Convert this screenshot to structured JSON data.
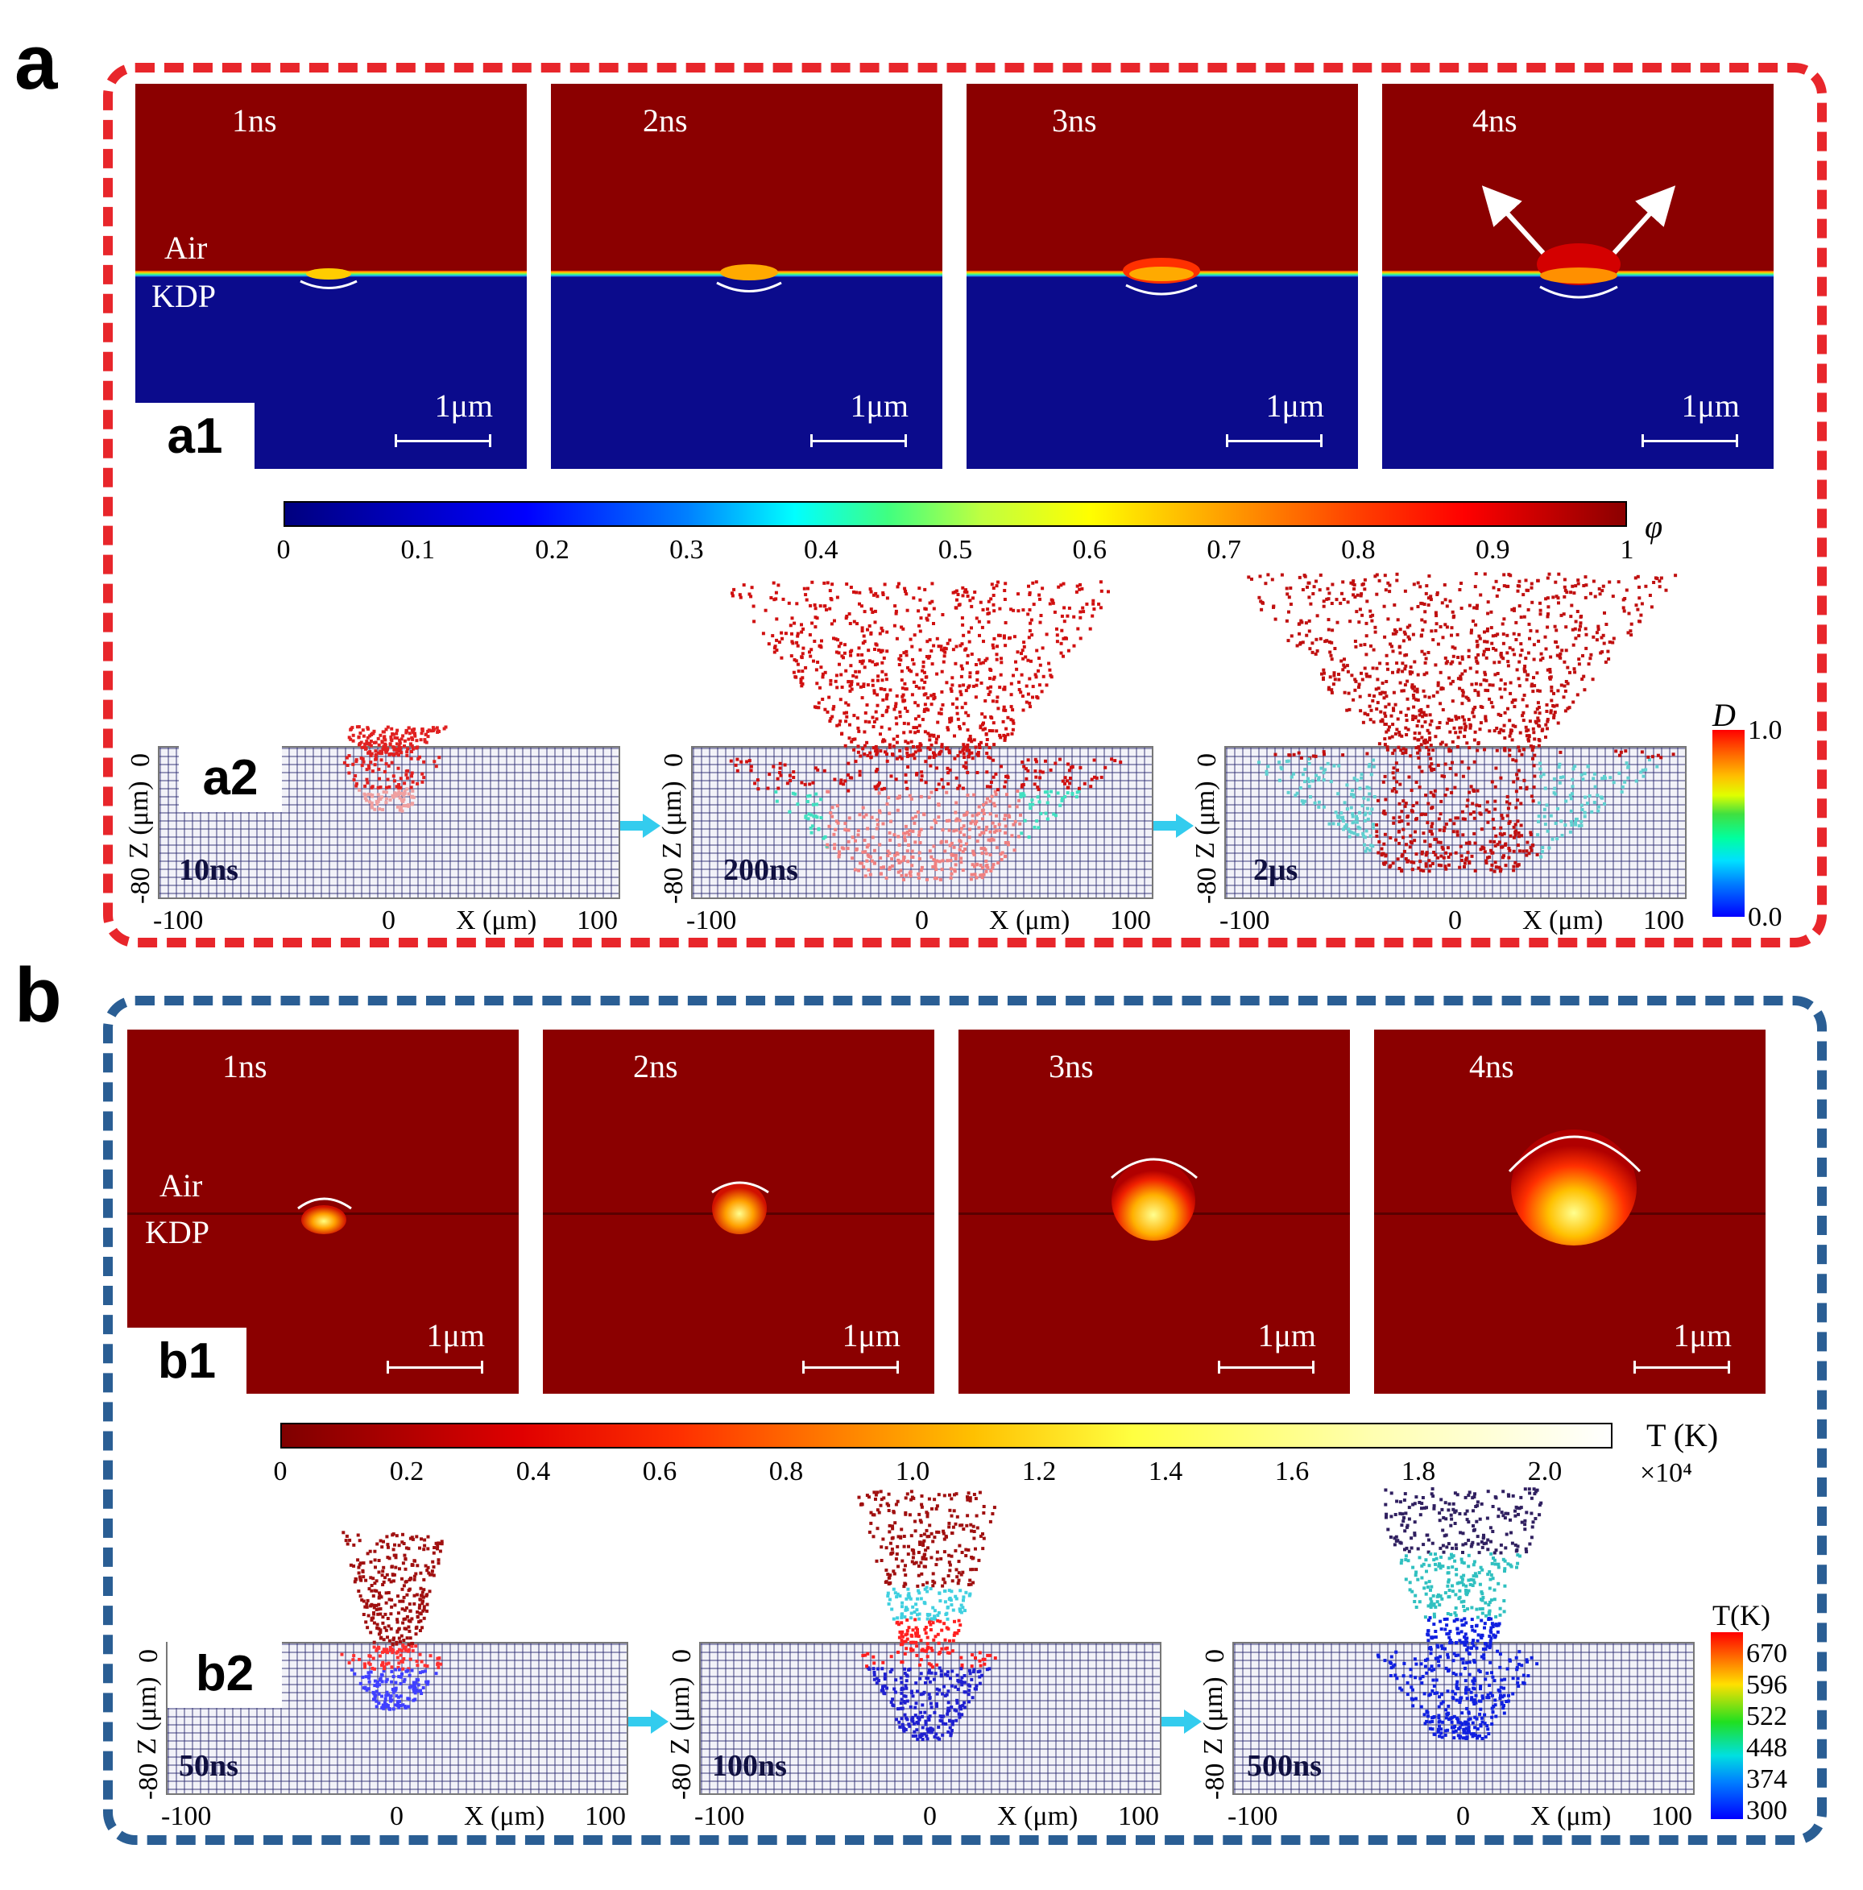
{
  "panel_a": {
    "letter": "a",
    "a1": {
      "tag": "a1",
      "snapshots": [
        {
          "time": "1ns",
          "scale": "1μm"
        },
        {
          "time": "2ns",
          "scale": "1μm"
        },
        {
          "time": "3ns",
          "scale": "1μm"
        },
        {
          "time": "4ns",
          "scale": "1μm"
        }
      ],
      "air_label": "Air",
      "kdp_label": "KDP"
    },
    "colorbar": {
      "symbol": "φ",
      "ticks": [
        "0",
        "0.1",
        "0.2",
        "0.3",
        "0.4",
        "0.5",
        "0.6",
        "0.7",
        "0.8",
        "0.9",
        "1"
      ]
    },
    "a2": {
      "tag": "a2",
      "times": [
        "10ns",
        "200ns",
        "2μs"
      ],
      "z_label": "Z (μm)",
      "z_top": "0",
      "z_bottom": "-80",
      "x_label": "X (μm)",
      "x_ticks": [
        "-100",
        "0",
        "100"
      ],
      "legend": {
        "title": "D",
        "max": "1.0",
        "min": "0.0"
      }
    }
  },
  "panel_b": {
    "letter": "b",
    "b1": {
      "tag": "b1",
      "snapshots": [
        {
          "time": "1ns",
          "scale": "1μm"
        },
        {
          "time": "2ns",
          "scale": "1μm"
        },
        {
          "time": "3ns",
          "scale": "1μm"
        },
        {
          "time": "4ns",
          "scale": "1μm"
        }
      ],
      "air_label": "Air",
      "kdp_label": "KDP"
    },
    "colorbar": {
      "title": "T (K)",
      "multiplier": "×10⁴",
      "ticks": [
        "0",
        "0.2",
        "0.4",
        "0.6",
        "0.8",
        "1.0",
        "1.2",
        "1.4",
        "1.6",
        "1.8",
        "2.0"
      ]
    },
    "b2": {
      "tag": "b2",
      "times": [
        "50ns",
        "100ns",
        "500ns"
      ],
      "z_label": "Z (μm)",
      "z_top": "0",
      "z_bottom": "-80",
      "x_label": "X (μm)",
      "x_ticks": [
        "-100",
        "0",
        "100"
      ],
      "legend": {
        "title": "T(K)",
        "ticks": [
          "670",
          "596",
          "522",
          "448",
          "374",
          "300"
        ]
      }
    }
  }
}
